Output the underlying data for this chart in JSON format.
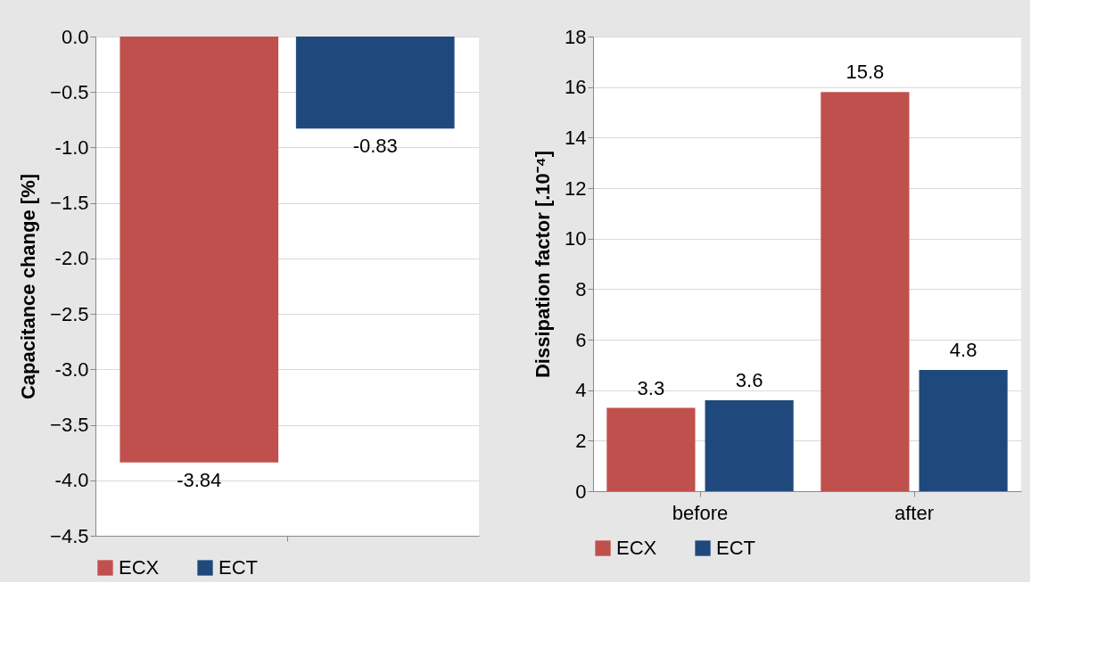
{
  "chart_data": [
    {
      "type": "bar",
      "categories": [
        null
      ],
      "ylabel": "Capacitance change  [%]",
      "ylim": [
        -4.5,
        0
      ],
      "yticks": [
        {
          "value": 0,
          "label": "0.0"
        },
        -0.5,
        {
          "value": -1,
          "label": "-1.0"
        },
        -1.5,
        {
          "value": -2,
          "label": "-2.0"
        },
        -2.5,
        {
          "value": -3,
          "label": "-3.0"
        },
        -3.5,
        {
          "value": -4,
          "label": "-4.0"
        },
        -4.5
      ],
      "series": [
        {
          "name": "ECX",
          "color": "#c0504d",
          "values": [
            -3.84
          ]
        },
        {
          "name": "ECT",
          "color": "#1f497d",
          "values": [
            -0.83
          ]
        }
      ],
      "data_labels": true,
      "grid": "y",
      "legend": "bottom",
      "tick_labels": "y"
    },
    {
      "type": "bar",
      "categories": [
        "before",
        "after"
      ],
      "ylabel": "Dissipation factor [.10⁻⁴]",
      "ylim": [
        0,
        18
      ],
      "yticks": [
        0,
        2,
        4,
        6,
        8,
        10,
        12,
        14,
        16,
        18
      ],
      "series": [
        {
          "name": "ECX",
          "color": "#c0504d",
          "values": [
            3.3,
            15.8
          ]
        },
        {
          "name": "ECT",
          "color": "#1f497d",
          "values": [
            3.6,
            4.8
          ]
        }
      ],
      "data_labels": true,
      "grid": "y",
      "legend": "bottom"
    }
  ]
}
